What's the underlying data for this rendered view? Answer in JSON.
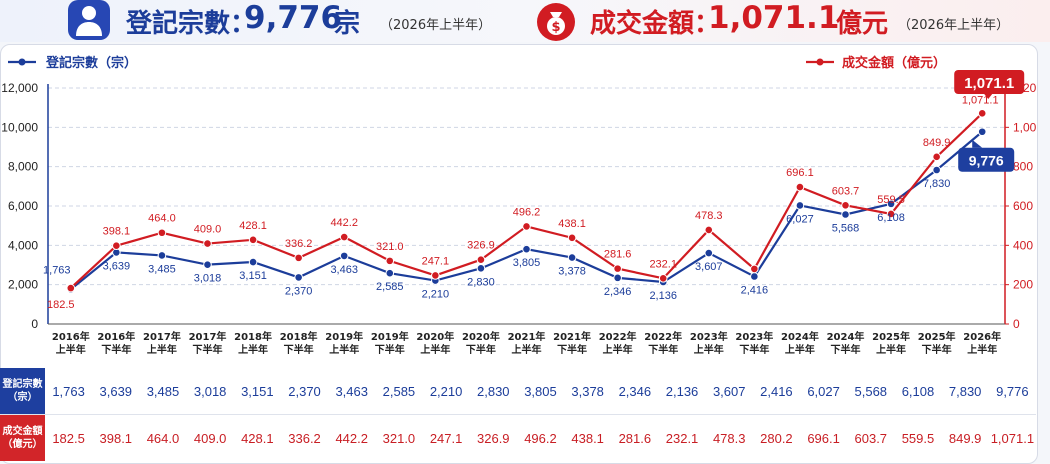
{
  "header": {
    "left": {
      "label": "登記宗數：",
      "value": "9,776",
      "unit": "宗",
      "period": "（2026年上半年）",
      "icon": "person-icon"
    },
    "right": {
      "label": "成交金額：",
      "value": "1,071.1",
      "unit": "億元",
      "period": "（2026年上半年）",
      "icon": "money-bag-icon"
    }
  },
  "legend": {
    "count": "登記宗數（宗）",
    "amount": "成交金額（億元）"
  },
  "table": {
    "count_header": "登記宗數\n（宗）",
    "amount_header": "成交金額\n（億元）"
  },
  "colors": {
    "blue": "#1c3d9a",
    "red": "#d11c22"
  },
  "chart_data": {
    "type": "line",
    "categories": [
      "2016年\n上半年",
      "2016年\n下半年",
      "2017年\n上半年",
      "2017年\n下半年",
      "2018年\n上半年",
      "2018年\n下半年",
      "2019年\n上半年",
      "2019年\n下半年",
      "2020年\n上半年",
      "2020年\n下半年",
      "2021年\n上半年",
      "2021年\n下半年",
      "2022年\n上半年",
      "2022年\n下半年",
      "2023年\n上半年",
      "2023年\n下半年",
      "2024年\n上半年",
      "2024年\n下半年",
      "2025年\n上半年",
      "2025年\n下半年",
      "2026年\n上半年"
    ],
    "series": [
      {
        "name": "登記宗數（宗）",
        "axis": "left",
        "color": "#1c3d9a",
        "values": [
          1763,
          3639,
          3485,
          3018,
          3151,
          2370,
          3463,
          2585,
          2210,
          2830,
          3805,
          3378,
          2346,
          2136,
          3607,
          2416,
          6027,
          5568,
          6108,
          7830,
          9776
        ],
        "labels": [
          "1,763",
          "3,639",
          "3,485",
          "3,018",
          "3,151",
          "2,370",
          "3,463",
          "2,585",
          "2,210",
          "2,830",
          "3,805",
          "3,378",
          "2,346",
          "2,136",
          "3,607",
          "2,416",
          "6,027",
          "5,568",
          "6,108",
          "7,830",
          "9,776"
        ]
      },
      {
        "name": "成交金額（億元）",
        "axis": "right",
        "color": "#d11c22",
        "values": [
          182.5,
          398.1,
          464.0,
          409.0,
          428.1,
          336.2,
          442.2,
          321.0,
          247.1,
          326.9,
          496.2,
          438.1,
          281.6,
          232.1,
          478.3,
          280.2,
          696.1,
          603.7,
          559.5,
          849.9,
          1071.1
        ],
        "labels": [
          "182.5",
          "398.1",
          "464.0",
          "409.0",
          "428.1",
          "336.2",
          "442.2",
          "321.0",
          "247.1",
          "326.9",
          "496.2",
          "438.1",
          "281.6",
          "232.1",
          "478.3",
          "",
          "696.1",
          "603.7",
          "559.5",
          "849.9",
          "1,071.1"
        ]
      }
    ],
    "table_labels": {
      "count": [
        "1,763",
        "3,639",
        "3,485",
        "3,018",
        "3,151",
        "2,370",
        "3,463",
        "2,585",
        "2,210",
        "2,830",
        "3,805",
        "3,378",
        "2,346",
        "2,136",
        "3,607",
        "2,416",
        "6,027",
        "5,568",
        "6,108",
        "7,830",
        "9,776"
      ],
      "amount": [
        "182.5",
        "398.1",
        "464.0",
        "409.0",
        "428.1",
        "336.2",
        "442.2",
        "321.0",
        "247.1",
        "326.9",
        "496.2",
        "438.1",
        "281.6",
        "232.1",
        "478.3",
        "280.2",
        "696.1",
        "603.7",
        "559.5",
        "849.9",
        "1,071.1"
      ]
    },
    "y_left": {
      "range": [
        0,
        12000
      ],
      "ticks": [
        "0",
        "2,000",
        "4,000",
        "6,000",
        "8,000",
        "10,000",
        "12,000"
      ],
      "tick_values": [
        0,
        2000,
        4000,
        6000,
        8000,
        10000,
        12000
      ]
    },
    "y_right": {
      "range": [
        0,
        1200
      ],
      "ticks": [
        "0",
        "200",
        "400",
        "600",
        "800",
        "1,000",
        "1,200"
      ],
      "tick_values": [
        0,
        200,
        400,
        600,
        800,
        1000,
        1200
      ]
    },
    "callouts": {
      "amount_last": "1,071.1",
      "count_last": "9,776"
    },
    "grid": "horizontal-dashed",
    "legend_placement": "top-left and top-right"
  }
}
